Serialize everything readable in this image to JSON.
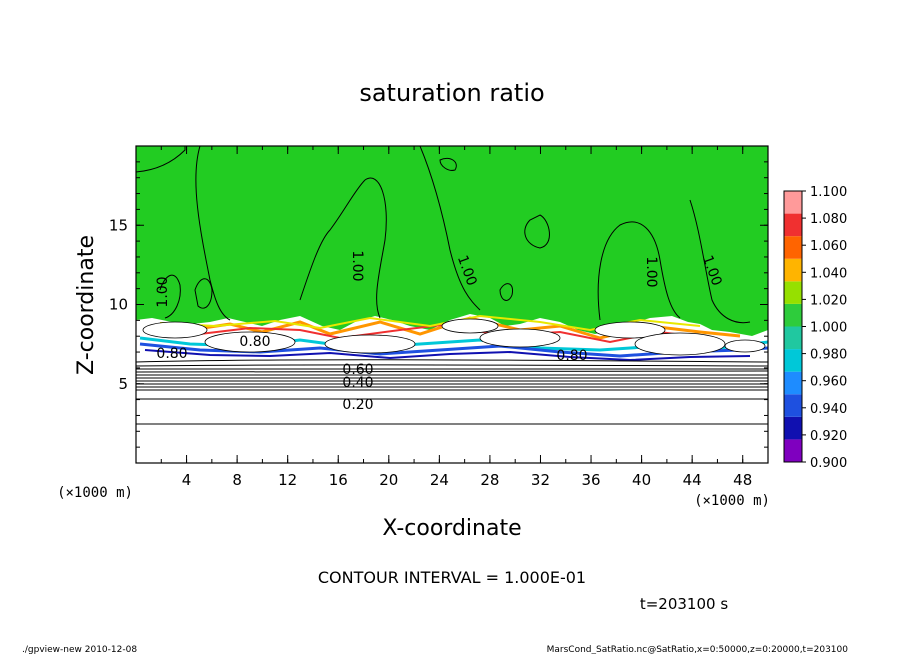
{
  "chart_data": {
    "type": "heatmap",
    "title": "saturation ratio",
    "xlabel": "X-coordinate",
    "ylabel": "Z-coordinate",
    "x_unit": "(×1000 m)",
    "y_unit": "(×1000 m)",
    "xlim": [
      0,
      50
    ],
    "ylim": [
      0,
      20
    ],
    "x_ticks": [
      4,
      8,
      12,
      16,
      20,
      24,
      28,
      32,
      36,
      40,
      44,
      48
    ],
    "y_ticks": [
      5,
      10,
      15
    ],
    "colorbar": {
      "levels": [
        "0.900",
        "0.920",
        "0.940",
        "0.960",
        "0.980",
        "1.000",
        "1.020",
        "1.040",
        "1.060",
        "1.080",
        "1.100"
      ],
      "colors": [
        "#7f00bf",
        "#1010b0",
        "#1e50e0",
        "#1e8cff",
        "#00c8d8",
        "#20c8a0",
        "#2ecc3c",
        "#96e000",
        "#ffb400",
        "#ff6400",
        "#f03030",
        "#ff9a9a"
      ]
    },
    "contour_labels": [
      "0.20",
      "0.40",
      "0.60",
      "0.80",
      "0.80",
      "0.80",
      "1.00",
      "1.00",
      "1.00",
      "1.00",
      "1.00"
    ],
    "contour_interval": "CONTOUR INTERVAL = 1.000E-01",
    "time_label": "t=203100 s"
  },
  "footer": {
    "left": "./gpview-new  2010-12-08",
    "right": "MarsCond_SatRatio.nc@SatRatio,x=0:50000,z=0:20000,t=203100"
  },
  "colors": {
    "saturated_green": "#22cc22",
    "background": "#ffffff"
  }
}
